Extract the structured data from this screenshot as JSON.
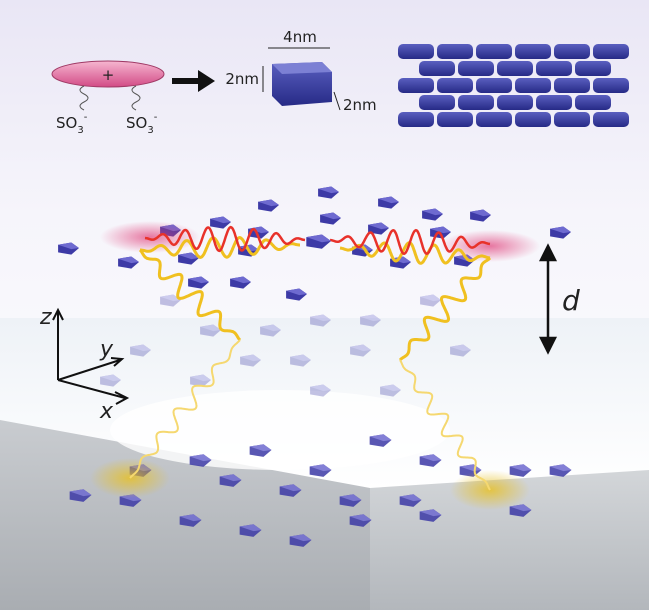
{
  "molecule": {
    "charge": "+",
    "tails": [
      {
        "base": "SO",
        "sub": "3",
        "sup": "-"
      },
      {
        "base": "SO",
        "sub": "3",
        "sup": "-"
      }
    ]
  },
  "brick": {
    "length": "4nm",
    "height": "2nm",
    "depth": "2nm"
  },
  "axes": {
    "z": "z",
    "y": "y",
    "x": "x"
  },
  "distance": "d"
}
